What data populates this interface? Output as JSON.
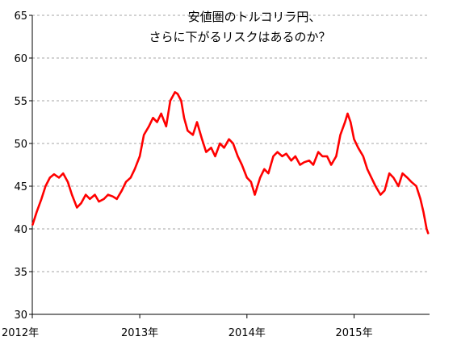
{
  "chart_data": {
    "type": "line",
    "title_lines": [
      "安値圏のトルコリラ円、",
      "さらに下がるリスクはあるのか？"
    ],
    "xlabel": "",
    "ylabel": "",
    "ylim": [
      30,
      65
    ],
    "yticks": [
      "30",
      "35",
      "40",
      "45",
      "50",
      "55",
      "60",
      "65"
    ],
    "xlim": [
      "2012-01-01",
      "2015-09-15"
    ],
    "xticks": [
      {
        "date": "2012-01-01",
        "label": "2012年"
      },
      {
        "date": "2013-01-01",
        "label": "2013年"
      },
      {
        "date": "2014-01-01",
        "label": "2014年"
      },
      {
        "date": "2015-01-01",
        "label": "2015年"
      }
    ],
    "grid": true,
    "line_color": "#ff0000",
    "series": [
      {
        "x": [
          "2012-01-02",
          "2012-01-16",
          "2012-02-01",
          "2012-02-15",
          "2012-03-01",
          "2012-03-15",
          "2012-04-01",
          "2012-04-15",
          "2012-05-01",
          "2012-05-15",
          "2012-06-01",
          "2012-06-15",
          "2012-07-01",
          "2012-07-15",
          "2012-08-01",
          "2012-08-15",
          "2012-09-01",
          "2012-09-15",
          "2012-10-01",
          "2012-10-15",
          "2012-11-01",
          "2012-11-15",
          "2012-12-01",
          "2012-12-15",
          "2013-01-01",
          "2013-01-15",
          "2013-02-01",
          "2013-02-15",
          "2013-03-01",
          "2013-03-15",
          "2013-04-01",
          "2013-04-15",
          "2013-05-01",
          "2013-05-10",
          "2013-05-22",
          "2013-06-01",
          "2013-06-13",
          "2013-07-01",
          "2013-07-15",
          "2013-08-01",
          "2013-08-15",
          "2013-09-01",
          "2013-09-15",
          "2013-10-01",
          "2013-10-15",
          "2013-11-01",
          "2013-11-15",
          "2013-12-01",
          "2013-12-15",
          "2014-01-01",
          "2014-01-15",
          "2014-01-28",
          "2014-02-15",
          "2014-03-01",
          "2014-03-15",
          "2014-04-01",
          "2014-04-15",
          "2014-05-01",
          "2014-05-15",
          "2014-06-01",
          "2014-06-15",
          "2014-07-01",
          "2014-07-15",
          "2014-08-01",
          "2014-08-15",
          "2014-09-01",
          "2014-09-15",
          "2014-10-01",
          "2014-10-15",
          "2014-11-01",
          "2014-11-15",
          "2014-12-01",
          "2014-12-10",
          "2014-12-20",
          "2015-01-01",
          "2015-01-15",
          "2015-02-01",
          "2015-02-15",
          "2015-03-01",
          "2015-03-15",
          "2015-04-01",
          "2015-04-15",
          "2015-05-01",
          "2015-05-15",
          "2015-06-01",
          "2015-06-15",
          "2015-07-01",
          "2015-07-15",
          "2015-08-01",
          "2015-08-15",
          "2015-08-25",
          "2015-09-05",
          "2015-09-10"
        ],
        "y": [
          40.5,
          42.0,
          43.5,
          45.0,
          46.0,
          46.4,
          46.0,
          46.5,
          45.5,
          44.0,
          42.5,
          43.0,
          44.0,
          43.5,
          44.0,
          43.2,
          43.5,
          44.0,
          43.8,
          43.5,
          44.5,
          45.5,
          46.0,
          47.0,
          48.5,
          51.0,
          52.0,
          53.0,
          52.5,
          53.5,
          52.0,
          55.0,
          56.0,
          55.8,
          55.0,
          53.0,
          51.5,
          51.0,
          52.5,
          50.5,
          49.0,
          49.5,
          48.5,
          50.0,
          49.5,
          50.5,
          50.0,
          48.5,
          47.5,
          46.0,
          45.5,
          44.0,
          46.0,
          47.0,
          46.5,
          48.5,
          49.0,
          48.5,
          48.8,
          48.0,
          48.5,
          47.5,
          47.8,
          48.0,
          47.5,
          49.0,
          48.5,
          48.5,
          47.5,
          48.5,
          51.0,
          52.5,
          53.5,
          52.5,
          50.5,
          49.5,
          48.5,
          47.0,
          46.0,
          45.0,
          44.0,
          44.5,
          46.5,
          46.0,
          45.0,
          46.5,
          46.0,
          45.5,
          45.0,
          43.5,
          42.0,
          40.0,
          39.5
        ]
      }
    ]
  }
}
